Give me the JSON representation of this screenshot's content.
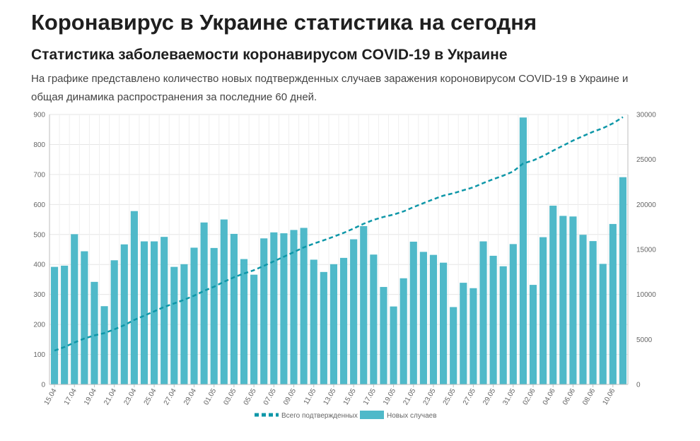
{
  "page": {
    "title": "Коронавирус в Украине статистика на сегодня",
    "subtitle": "Статистика заболеваемости коронавирусом COVID-19 в Украине",
    "description": "На графике представлено количество новых подтвержденных случаев заражения короновирусом COVID-19 в Украине и общая динамика распространения за последние 60 дней."
  },
  "chart_data": {
    "type": "bar",
    "title": "",
    "xlabel": "",
    "ylabel": "",
    "x_tick_labels": [
      "15.04",
      "17.04",
      "19.04",
      "21.04",
      "23.04",
      "25.04",
      "27.04",
      "29.04",
      "01.05",
      "03.05",
      "05.05",
      "07.05",
      "09.05",
      "11.05",
      "13.05",
      "15.05",
      "17.05",
      "19.05",
      "21.05",
      "23.05",
      "25.05",
      "27.05",
      "29.05",
      "31.05",
      "02.06",
      "04.06",
      "06.06",
      "08.06",
      "10.06"
    ],
    "categories": [
      "15.04",
      "16.04",
      "17.04",
      "18.04",
      "19.04",
      "20.04",
      "21.04",
      "22.04",
      "23.04",
      "24.04",
      "25.04",
      "26.04",
      "27.04",
      "28.04",
      "29.04",
      "30.04",
      "01.05",
      "02.05",
      "03.05",
      "04.05",
      "05.05",
      "06.05",
      "07.05",
      "08.05",
      "09.05",
      "10.05",
      "11.05",
      "12.05",
      "13.05",
      "14.05",
      "15.05",
      "16.05",
      "17.05",
      "18.05",
      "19.05",
      "20.05",
      "21.05",
      "22.05",
      "23.05",
      "24.05",
      "25.05",
      "26.05",
      "27.05",
      "28.05",
      "29.05",
      "30.05",
      "31.05",
      "01.06",
      "02.06",
      "03.06",
      "04.06",
      "05.06",
      "06.06",
      "07.06",
      "08.06",
      "09.06",
      "10.06",
      "11.06"
    ],
    "series": [
      {
        "name": "Новых случаев",
        "axis": "left",
        "type": "bar",
        "color": "#4fb9c9",
        "values": [
          392,
          396,
          501,
          444,
          342,
          261,
          414,
          467,
          578,
          477,
          477,
          492,
          392,
          401,
          456,
          540,
          455,
          550,
          502,
          418,
          366,
          487,
          507,
          504,
          515,
          522,
          416,
          375,
          401,
          422,
          484,
          528,
          433,
          325,
          260,
          354,
          476,
          442,
          432,
          406,
          258,
          339,
          321,
          477,
          429,
          394,
          468,
          890,
          332,
          491,
          596,
          562,
          560,
          499,
          478,
          402,
          535,
          691
        ]
      },
      {
        "name": "Всего подтвержденных",
        "axis": "right",
        "type": "line",
        "style": "dashed",
        "color": "#0e97a8",
        "values": [
          3764,
          4162,
          4663,
          5106,
          5449,
          5710,
          6125,
          6592,
          7170,
          7647,
          8125,
          8617,
          9009,
          9410,
          9866,
          10406,
          10861,
          11411,
          11913,
          12331,
          12697,
          13184,
          13691,
          14195,
          14710,
          15232,
          15648,
          16023,
          16425,
          16847,
          17330,
          17858,
          18291,
          18616,
          18876,
          19230,
          19706,
          20148,
          20580,
          20986,
          21245,
          21584,
          21905,
          22382,
          22811,
          23204,
          23672,
          24562,
          24894,
          25385,
          25981,
          26542,
          27102,
          27601,
          28079,
          28481,
          29016,
          29707
        ]
      }
    ],
    "y_left": {
      "min": 0,
      "max": 900,
      "ticks": [
        0,
        100,
        200,
        300,
        400,
        500,
        600,
        700,
        800,
        900
      ]
    },
    "y_right": {
      "min": 0,
      "max": 30000,
      "ticks": [
        0,
        5000,
        10000,
        15000,
        20000,
        25000,
        30000
      ]
    },
    "grid": true,
    "legend_position": "bottom"
  }
}
